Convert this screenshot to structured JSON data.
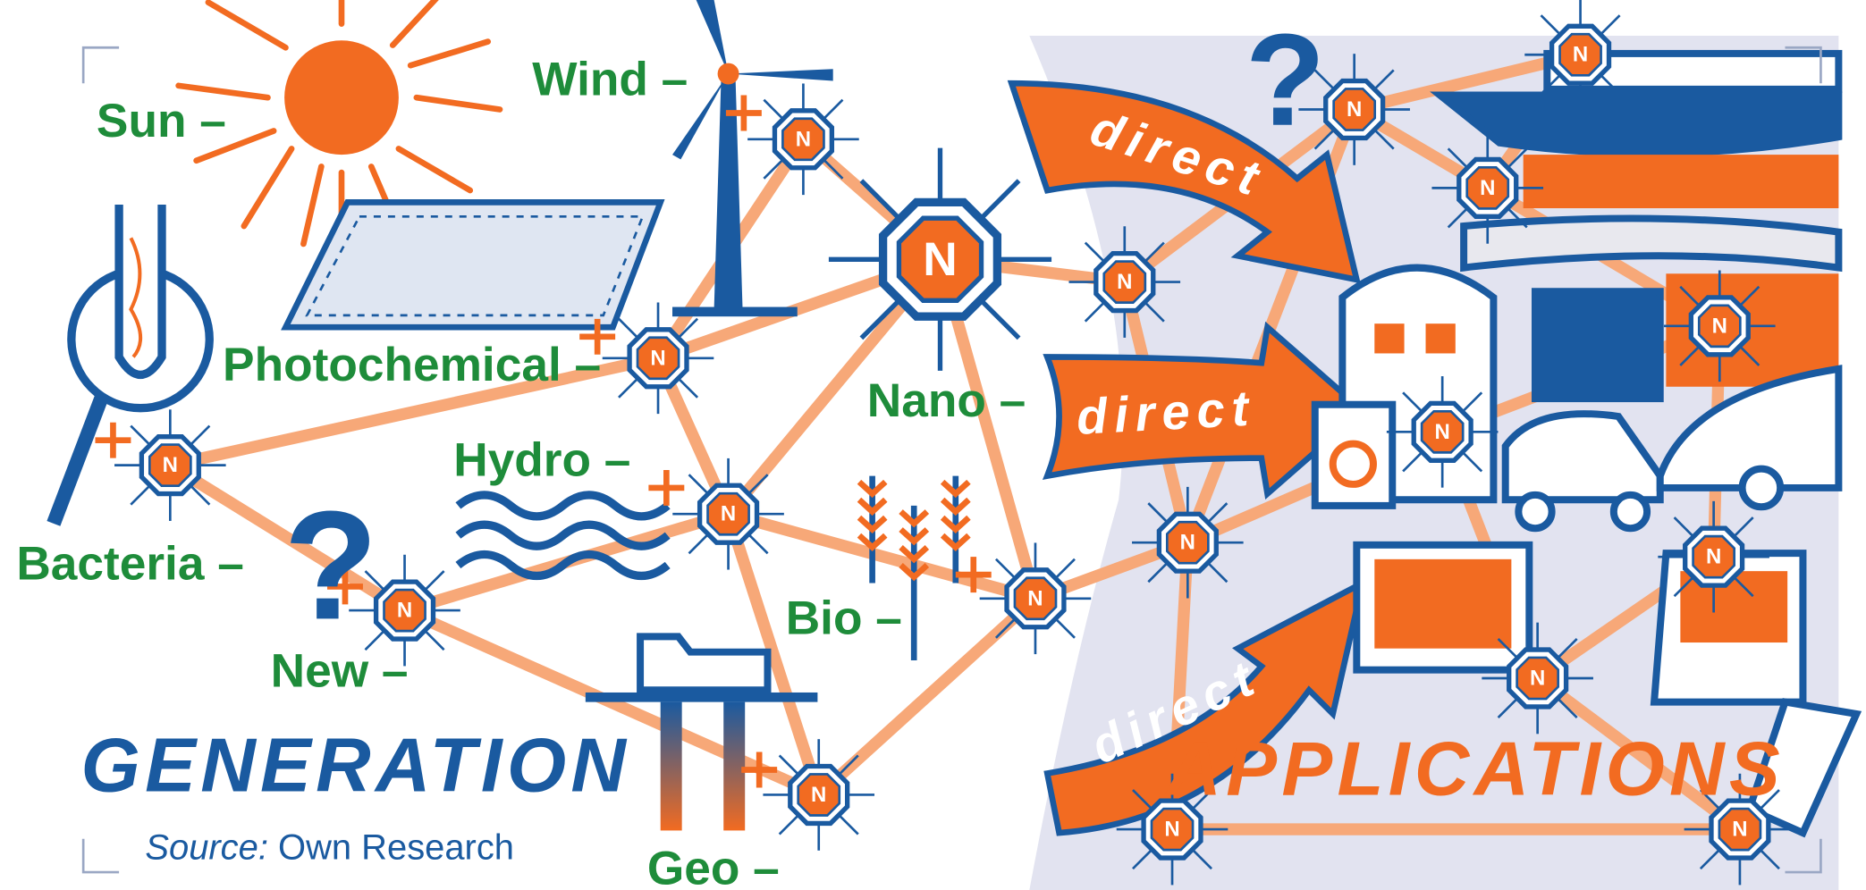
{
  "generation_sources": [
    "Sun –",
    "Wind –",
    "Photochemical –",
    "Bacteria –",
    "New –",
    "Hydro –",
    "Nano –",
    "Bio –",
    "Geo –"
  ],
  "arrows": [
    "direct",
    "direct",
    "direct"
  ],
  "sections": {
    "generation": "GENERATION",
    "applications": "APPLICATIONS"
  },
  "source": {
    "label": "Source:",
    "text": "Own Research"
  },
  "question_marks": [
    "?",
    "?"
  ],
  "nodes": [
    {
      "label": "N"
    },
    {
      "label": "N"
    },
    {
      "label": "N"
    },
    {
      "label": "N"
    },
    {
      "label": "N"
    },
    {
      "label": "N"
    },
    {
      "label": "N"
    },
    {
      "label": "N"
    },
    {
      "label": "N"
    },
    {
      "label": "N"
    },
    {
      "label": "N"
    },
    {
      "label": "N"
    },
    {
      "label": "N"
    },
    {
      "label": "N"
    },
    {
      "label": "N"
    },
    {
      "label": "N"
    },
    {
      "label": "N"
    },
    {
      "label": "N"
    },
    {
      "label": "N"
    }
  ]
}
